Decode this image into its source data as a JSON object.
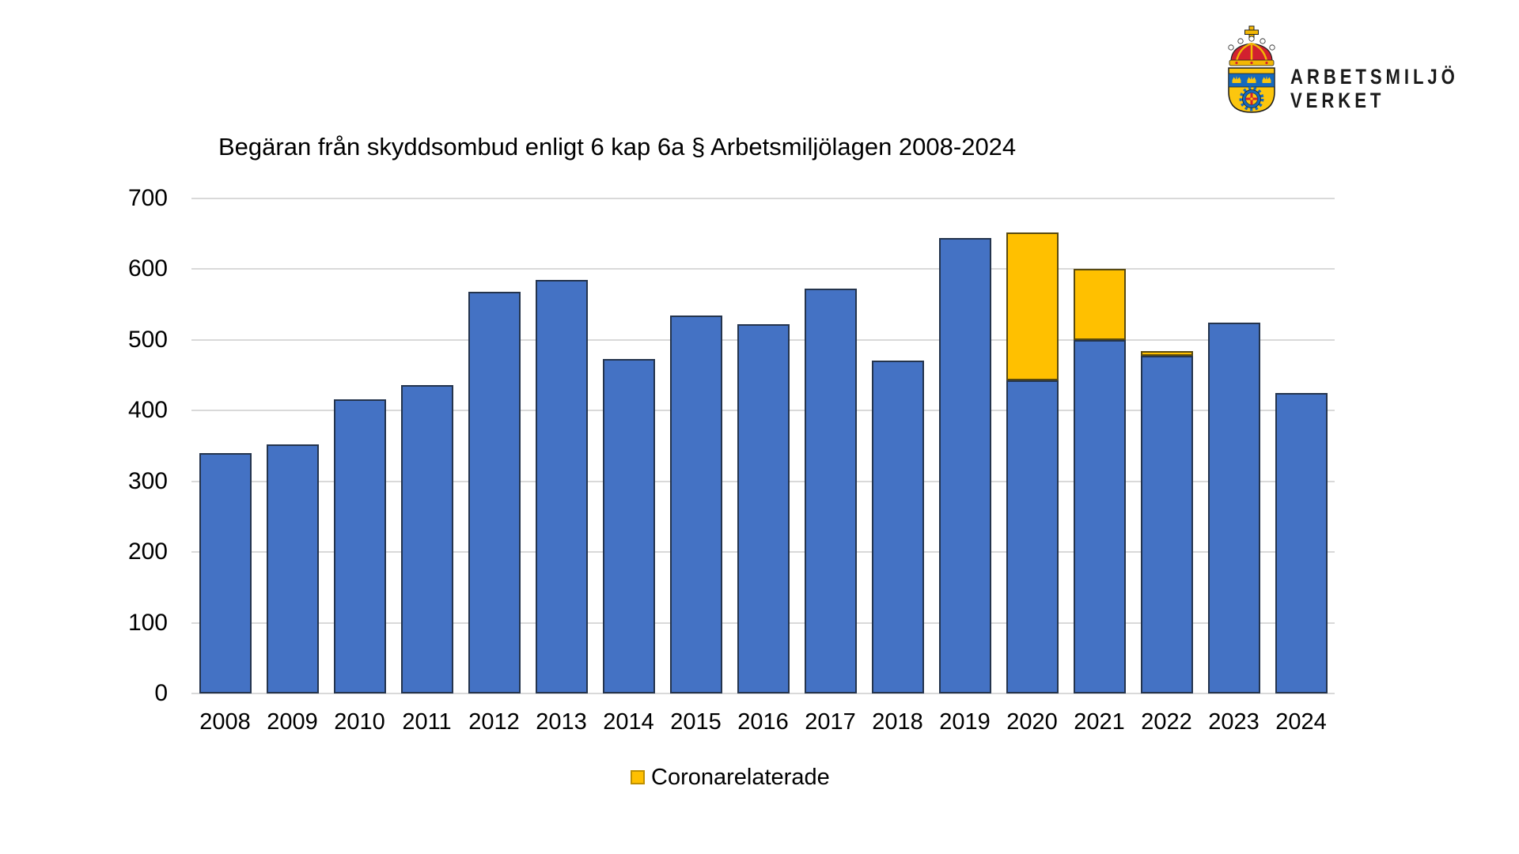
{
  "logo": {
    "brand_line1": "ARBETSMILJÖ",
    "brand_line2": "VERKET"
  },
  "chart_data": {
    "type": "bar",
    "stacked": true,
    "title": "Begäran från skyddsombud enligt 6 kap 6a § Arbetsmiljölagen 2008-2024",
    "categories": [
      "2008",
      "2009",
      "2010",
      "2011",
      "2012",
      "2013",
      "2014",
      "2015",
      "2016",
      "2017",
      "2018",
      "2019",
      "2020",
      "2021",
      "2022",
      "2023",
      "2024"
    ],
    "series": [
      {
        "name": "",
        "color": "#4472C4",
        "border": "#24344d",
        "values": [
          340,
          352,
          416,
          436,
          568,
          585,
          473,
          535,
          522,
          573,
          471,
          644,
          443,
          500,
          477,
          525,
          425
        ]
      },
      {
        "name": "Coronarelaterade",
        "color": "#FFC000",
        "border": "#594a10",
        "values": [
          0,
          0,
          0,
          0,
          0,
          0,
          0,
          0,
          0,
          0,
          0,
          0,
          209,
          100,
          7,
          0,
          0
        ]
      }
    ],
    "ylim": [
      0,
      700
    ],
    "yticks": [
      0,
      100,
      200,
      300,
      400,
      500,
      600,
      700
    ],
    "grid": true,
    "legend": {
      "position": "bottom",
      "entries": [
        "Coronarelaterade"
      ],
      "swatch_color": "#FFC000"
    }
  }
}
